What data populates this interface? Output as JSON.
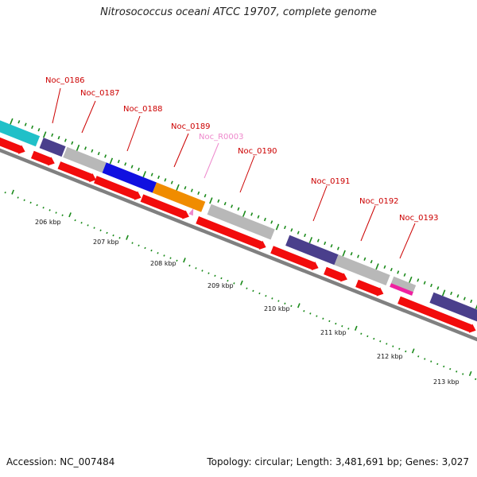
{
  "title": "Nitrosococcus oceani ATCC 19707, complete genome",
  "footer": {
    "accession": "Accession: NC_007484",
    "stats": "Topology: circular; Length: 3,481,691 bp; Genes: 3,027"
  },
  "colors": {
    "cds_forward": "#f20c0c",
    "backbone": "#808080",
    "tick_green": "#1a8a1a",
    "label_red": "#cc0000",
    "label_pink": "#ee88cc"
  },
  "kbp_labels": [
    "206 kbp",
    "207 kbp",
    "208 kbp",
    "209 kbp",
    "210 kbp",
    "211 kbp",
    "212 kbp",
    "213 kbp"
  ],
  "genes": [
    {
      "name": "",
      "color": "#20c0c8"
    },
    {
      "name": "Noc_0186",
      "color": "#4a3f8c"
    },
    {
      "name": "Noc_0187",
      "color": "#b8b8b8"
    },
    {
      "name": "Noc_0188",
      "color": "#1010e0"
    },
    {
      "name": "Noc_0189",
      "color": "#f08c00"
    },
    {
      "name": "Noc_R0003",
      "color": "#ff99cc"
    },
    {
      "name": "Noc_0190",
      "color": "#b8b8b8"
    },
    {
      "name": "Noc_0191",
      "color": "#4a3f8c"
    },
    {
      "name": "",
      "color": "#b8b8b8"
    },
    {
      "name": "Noc_0192",
      "color": "#b8b8b8"
    },
    {
      "name": "Noc_0193",
      "color": "#f020a0"
    },
    {
      "name": "",
      "color": "#4a3f8c"
    }
  ]
}
